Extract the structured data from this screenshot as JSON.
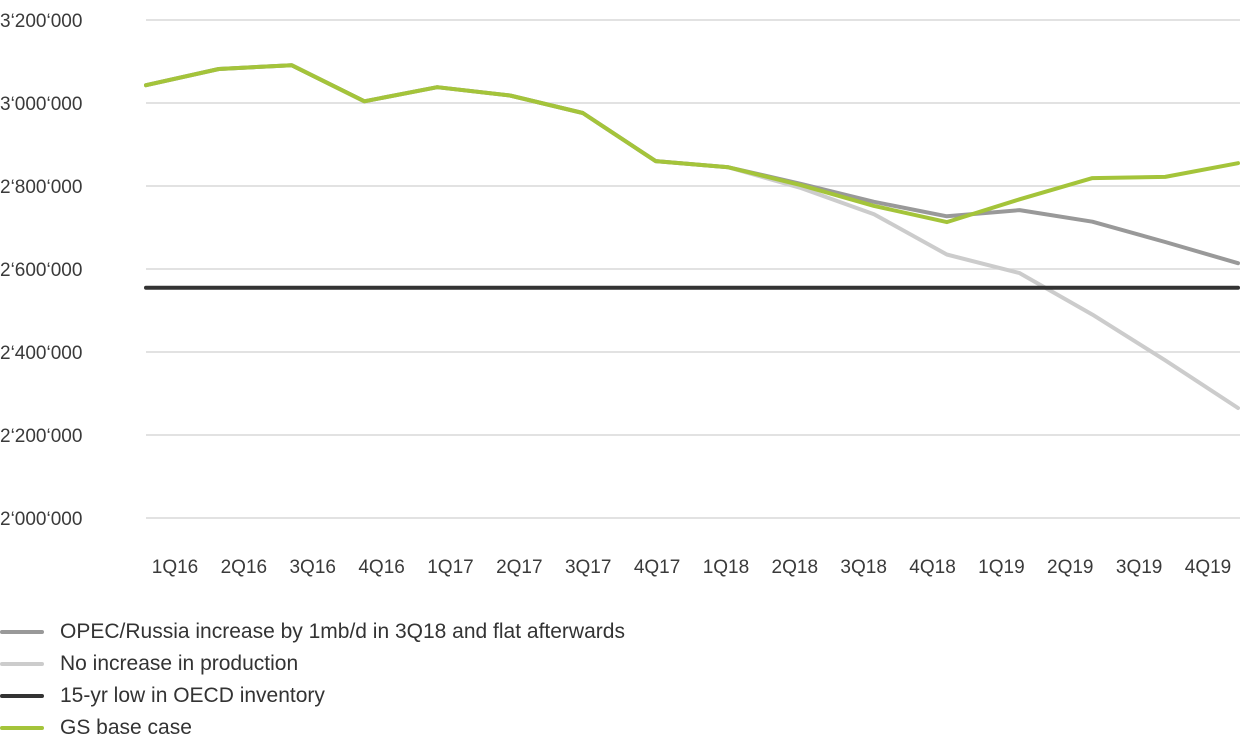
{
  "chart_data": {
    "type": "line",
    "categories": [
      "1Q16",
      "2Q16",
      "3Q16",
      "4Q16",
      "1Q17",
      "2Q17",
      "3Q17",
      "4Q17",
      "1Q18",
      "2Q18",
      "3Q18",
      "4Q18",
      "1Q19",
      "2Q19",
      "3Q19",
      "4Q19"
    ],
    "ylim": [
      2000000,
      3200000
    ],
    "yticks": [
      2000000,
      2200000,
      2400000,
      2600000,
      2800000,
      3000000,
      3200000
    ],
    "ytick_labels": [
      "2‘000‘000",
      "2‘200‘000",
      "2‘400‘000",
      "2‘600‘000",
      "2‘800‘000",
      "3‘000‘000",
      "3‘200‘000"
    ],
    "grid": true,
    "legend_position": "bottom-left",
    "series": [
      {
        "name": "OPEC/Russia increase by 1mb/d in 3Q18 and flat afterwards",
        "color": "#999999",
        "values": [
          3043000,
          3082000,
          3091000,
          3004000,
          3038000,
          3018000,
          2976000,
          2860000,
          2845000,
          2805000,
          2762000,
          2727000,
          2742000,
          2714000,
          2665000,
          2614000
        ]
      },
      {
        "name": "No increase in production",
        "color": "#cccccc",
        "values": [
          3043000,
          3082000,
          3091000,
          3004000,
          3038000,
          3018000,
          2976000,
          2860000,
          2845000,
          2795000,
          2732000,
          2635000,
          2590000,
          2490000,
          2380000,
          2265000
        ]
      },
      {
        "name": "15-yr low in OECD inventory",
        "color": "#333333",
        "values": [
          2555000,
          2555000,
          2555000,
          2555000,
          2555000,
          2555000,
          2555000,
          2555000,
          2555000,
          2555000,
          2555000,
          2555000,
          2555000,
          2555000,
          2555000,
          2555000
        ]
      },
      {
        "name": "GS base case",
        "color": "#a4c43a",
        "values": [
          3043000,
          3082000,
          3091000,
          3004000,
          3038000,
          3018000,
          2976000,
          2860000,
          2845000,
          2802000,
          2752000,
          2713000,
          2768000,
          2819000,
          2822000,
          2855000
        ]
      }
    ]
  }
}
